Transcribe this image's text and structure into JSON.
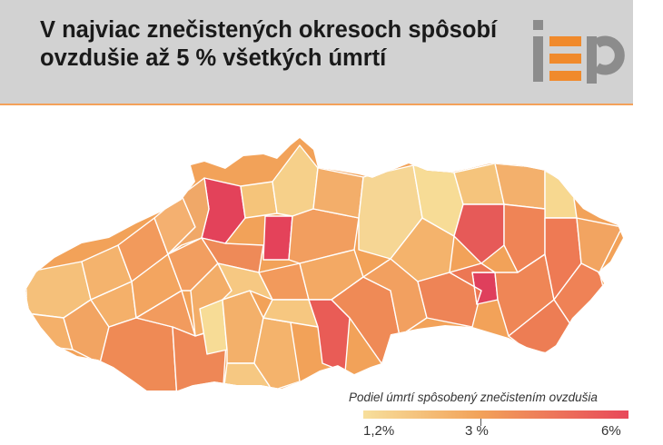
{
  "header": {
    "title_line1": "V najviac znečistených okresoch spôsobí",
    "title_line2": "ovzdušie až 5 % všetkých úmrtí",
    "logo": "iep"
  },
  "colors": {
    "header_bg": "#d2d2d2",
    "accent": "#f4a15a",
    "scale_low": "#f7df9c",
    "scale_mid": "#f2a259",
    "scale_high": "#e8485a"
  },
  "legend": {
    "title": "Podiel úmrtí spôsobený znečistením ovzdušia",
    "min_label": "1,2%",
    "mid_label": "3 %",
    "max_label": "6%"
  }
}
